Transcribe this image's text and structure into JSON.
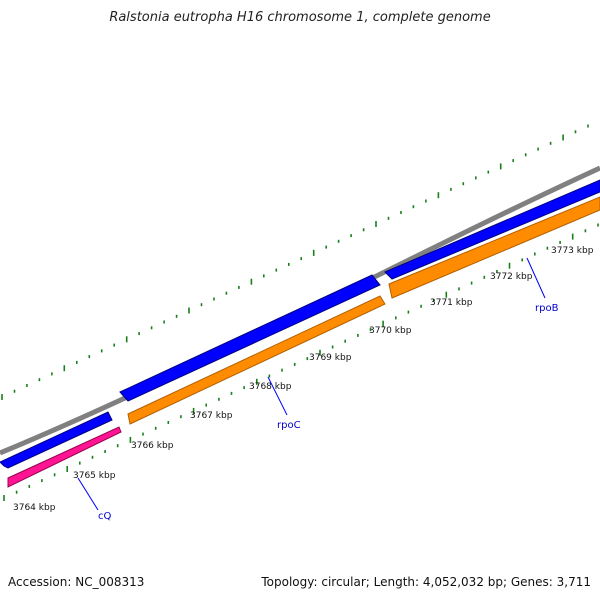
{
  "title": "Ralstonia eutropha H16 chromosome 1, complete genome",
  "footer": {
    "accession": "Accession: NC_008313",
    "topology": "Topology: circular; Length: 4,052,032 bp; Genes: 3,711"
  },
  "scale_labels": [
    "3764 kbp",
    "3765 kbp",
    "3766 kbp",
    "3767 kbp",
    "3768 kbp",
    "3769 kbp",
    "3770 kbp",
    "3771 kbp",
    "3772 kbp",
    "3773 kbp"
  ],
  "genes": [
    {
      "name": "cQ",
      "strand": "reverse",
      "color": "#ff1493"
    },
    {
      "name": "rpoC",
      "strand": "forward",
      "color": "#0000ff"
    },
    {
      "name": "rpoB",
      "strand": "forward",
      "color": "#0000ff"
    }
  ],
  "colors": {
    "backbone": "#808080",
    "forward_cds": "#0000ff",
    "reverse_cds": "#ff8c00",
    "reverse_cds_pink": "#ff1493",
    "tick": "#1a7f1a",
    "gene_label": "#0000cc",
    "leader_line": "#0000ff"
  }
}
